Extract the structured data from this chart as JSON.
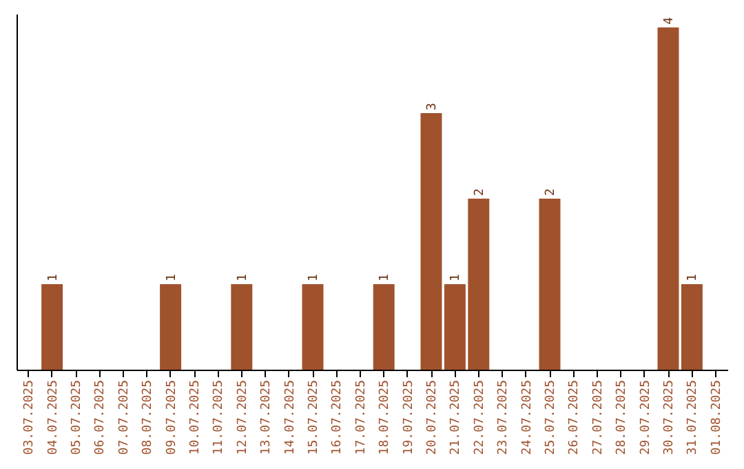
{
  "chart_data": {
    "type": "bar",
    "categories": [
      "03.07.2025",
      "04.07.2025",
      "05.07.2025",
      "06.07.2025",
      "07.07.2025",
      "08.07.2025",
      "09.07.2025",
      "10.07.2025",
      "11.07.2025",
      "12.07.2025",
      "13.07.2025",
      "14.07.2025",
      "15.07.2025",
      "16.07.2025",
      "17.07.2025",
      "18.07.2025",
      "19.07.2025",
      "20.07.2025",
      "21.07.2025",
      "22.07.2025",
      "23.07.2025",
      "24.07.2025",
      "25.07.2025",
      "26.07.2025",
      "27.07.2025",
      "28.07.2025",
      "29.07.2025",
      "30.07.2025",
      "31.07.2025",
      "01.08.2025"
    ],
    "values": [
      0,
      1,
      0,
      0,
      0,
      0,
      1,
      0,
      0,
      1,
      0,
      0,
      1,
      0,
      0,
      1,
      0,
      3,
      1,
      2,
      0,
      0,
      2,
      0,
      0,
      0,
      0,
      4,
      1,
      0
    ],
    "value_labels": [
      null,
      "1",
      null,
      null,
      null,
      null,
      "1",
      null,
      null,
      "1",
      null,
      null,
      "1",
      null,
      null,
      "1",
      null,
      "3",
      "1",
      "2",
      null,
      null,
      "2",
      null,
      null,
      null,
      null,
      "4",
      "1",
      null
    ],
    "color": "#a0522d",
    "ylim": [
      0,
      4.16
    ],
    "tick_labels": "x",
    "grid": false
  }
}
